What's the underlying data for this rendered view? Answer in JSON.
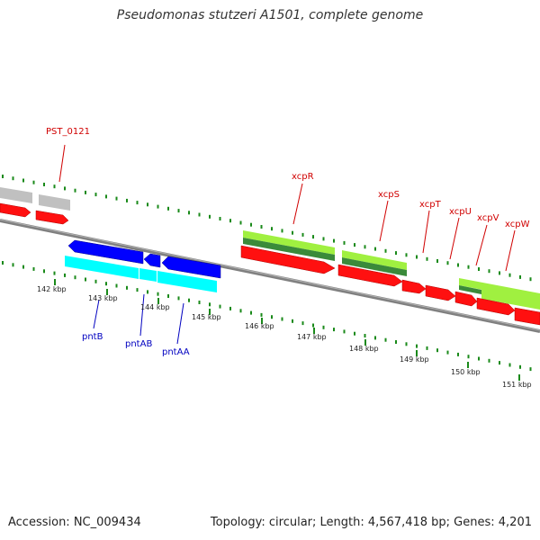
{
  "title": "Pseudomonas stutzeri A1501, complete genome",
  "footer": {
    "accession": "Accession: NC_009434",
    "summary": "Topology: circular; Length: 4,567,418 bp; Genes: 4,201"
  },
  "colors": {
    "backbone": "#808080",
    "tick": "#1a8a1a",
    "label_red": "#d00000",
    "label_blue": "#0000c0",
    "cds_red": "#ff1010",
    "gene_grey": "#c0c0c0",
    "gene_green": "#a0f040",
    "gene_darkgreen": "#3a8a3a",
    "gene_blue": "#0000ff",
    "gene_cyan": "#00ffff"
  },
  "scale": {
    "unit": "kbp",
    "labels": [
      "142 kbp",
      "143 kbp",
      "144 kbp",
      "145 kbp",
      "146 kbp",
      "147 kbp",
      "148 kbp",
      "149 kbp",
      "150 kbp",
      "151 kbp"
    ]
  },
  "gene_labels": {
    "top": [
      "PST_0121",
      "xcpR",
      "xcpS",
      "xcpT",
      "xcpU",
      "xcpV",
      "xcpW"
    ],
    "bottom": [
      "pntB",
      "pntAB",
      "pntAA"
    ]
  }
}
